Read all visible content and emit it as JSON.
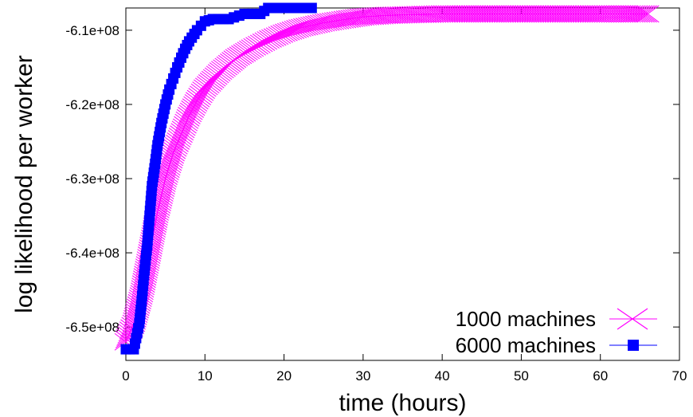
{
  "chart_data": {
    "type": "line",
    "title": "",
    "xlabel": "time (hours)",
    "ylabel": "log likelihood per worker",
    "xlim": [
      0,
      70
    ],
    "ylim": [
      -654500000.0,
      -607000000.0
    ],
    "x_ticks": [
      0,
      10,
      20,
      30,
      40,
      50,
      60,
      70
    ],
    "x_tick_labels": [
      "0",
      "10",
      "20",
      "30",
      "40",
      "50",
      "60",
      "70"
    ],
    "y_ticks": [
      -650000000.0,
      -640000000.0,
      -630000000.0,
      -620000000.0,
      -610000000.0
    ],
    "y_tick_labels": [
      "-6.5e+08",
      "-6.4e+08",
      "-6.3e+08",
      "-6.2e+08",
      "-6.1e+08"
    ],
    "grid": false,
    "legend_position": "bottom-right",
    "series": [
      {
        "name": "1000 machines",
        "color": "#ff00ff",
        "marker": "x",
        "x": [
          0,
          1,
          2,
          3,
          4,
          5,
          6,
          7,
          8,
          9,
          10,
          12,
          14,
          16,
          18,
          20,
          22,
          25,
          28,
          30,
          33,
          36,
          40,
          45,
          50,
          55,
          60,
          64,
          66
        ],
        "y": [
          -652000000.0,
          -649500000.0,
          -645500000.0,
          -640000000.0,
          -634500000.0,
          -630000000.0,
          -626500000.0,
          -624000000.0,
          -621500000.0,
          -619500000.0,
          -617800000.0,
          -615500000.0,
          -613700000.0,
          -612400000.0,
          -611300000.0,
          -610400000.0,
          -609700000.0,
          -609000000.0,
          -608500000.0,
          -608200000.0,
          -608000000.0,
          -607900000.0,
          -607800000.0,
          -607800000.0,
          -607800000.0,
          -607800000.0,
          -607800000.0,
          -607800000.0,
          -607800000.0
        ]
      },
      {
        "name": "6000 machines",
        "color": "#0000ff",
        "marker": "square",
        "x": [
          0,
          0.5,
          1,
          1.3,
          1.7,
          2,
          2.3,
          2.7,
          3,
          3.3,
          3.7,
          4,
          4.5,
          5,
          5.5,
          6,
          6.5,
          7,
          7.5,
          8,
          9,
          10,
          11,
          13,
          15,
          16,
          17,
          18,
          20,
          22,
          23.5
        ],
        "y": [
          -653000000.0,
          -653000000.0,
          -653000000.0,
          -651500000.0,
          -649500000.0,
          -646500000.0,
          -643000000.0,
          -639000000.0,
          -635000000.0,
          -631000000.0,
          -628000000.0,
          -625500000.0,
          -622500000.0,
          -620000000.0,
          -618000000.0,
          -616500000.0,
          -615000000.0,
          -613700000.0,
          -612500000.0,
          -611500000.0,
          -610000000.0,
          -608800000.0,
          -608500000.0,
          -608500000.0,
          -607800000.0,
          -607800000.0,
          -607800000.0,
          -607000000.0,
          -607000000.0,
          -607000000.0,
          -607000000.0
        ]
      }
    ]
  }
}
